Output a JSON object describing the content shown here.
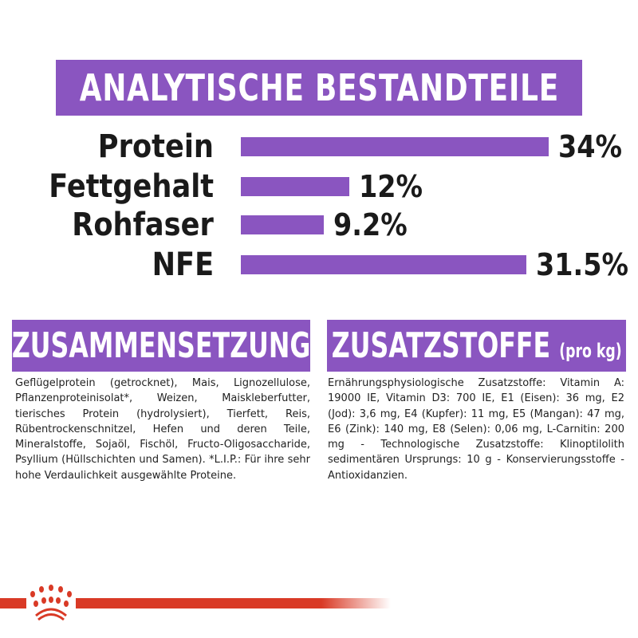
{
  "chart_data": {
    "type": "bar",
    "title": "ANALYTISCHE BESTANDTEILE",
    "orientation": "horizontal",
    "categories": [
      "Protein",
      "Fettgehalt",
      "Rohfaser",
      "NFE"
    ],
    "values": [
      34,
      12,
      9.2,
      31.5
    ],
    "data_labels": [
      "34%",
      "12%",
      "9.2%",
      "31.5%"
    ],
    "unit": "%",
    "bar_color": "#8a55c0",
    "grid": false
  },
  "composition": {
    "heading": "ZUSAMMENSETZUNG",
    "text": "Geflügelprotein (getrocknet), Mais, Lignozellulose, Pflanzenproteinisolat*, Weizen, Maiskleberfutter, tierisches Protein (hydrolysiert), Tierfett, Reis, Rübentrockenschnitzel, Hefen und deren Teile, Mineralstoffe, Sojaöl, Fischöl, Fructo-Oligosaccharide, Psyllium (Hüllschichten und Samen). *L.I.P.: Für ihre sehr hohe Verdaulichkeit ausgewählte Proteine."
  },
  "additives": {
    "heading": "ZUSATZSTOFFE",
    "heading_suffix": "(pro kg)",
    "text": "Ernährungsphysiologische Zusatzstoffe: Vitamin A: 19000 IE, Vitamin D3: 700 IE, E1 (Eisen): 36 mg, E2 (Jod): 3,6 mg, E4 (Kupfer): 11 mg, E5 (Mangan): 47 mg, E6 (Zink): 140 mg, E8 (Selen): 0,06 mg, L-Carnitin: 200 mg - Technologische Zusatzstoffe: Klinoptilolith sedimentären Ursprungs: 10 g - Konservierungsstoffe - Antioxidanzien."
  },
  "brand": {
    "logo": "Royal Canin crown",
    "accent": "#d93a26"
  }
}
